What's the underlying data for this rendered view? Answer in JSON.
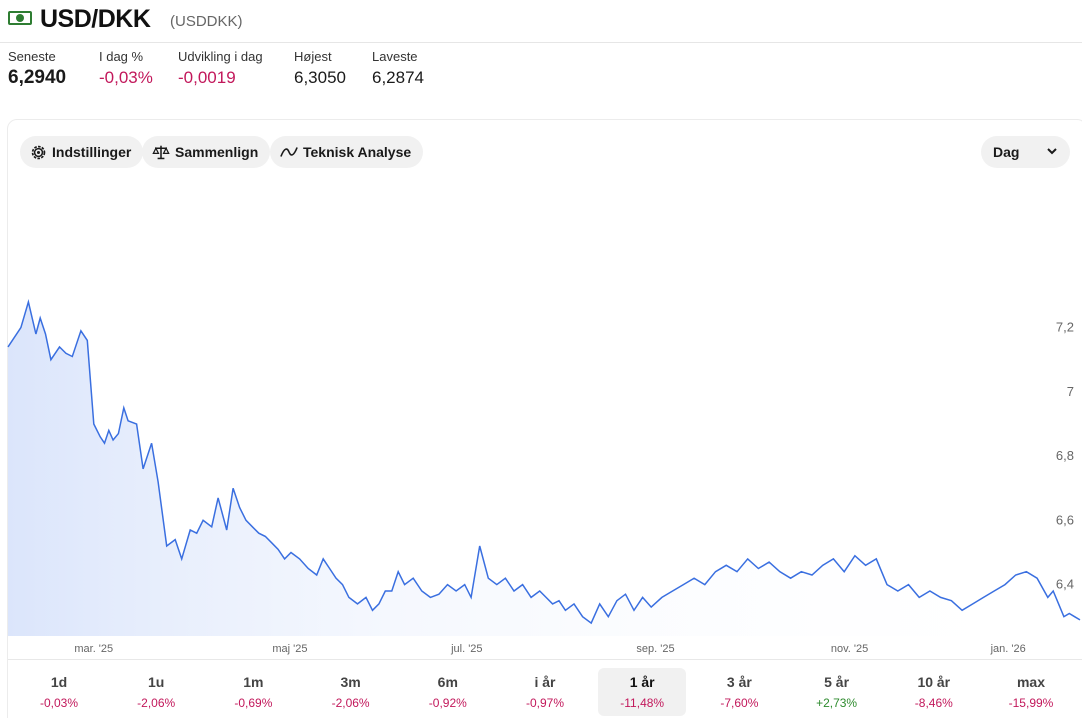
{
  "header": {
    "title": "USD/DKK",
    "ticker": "(USDDKK)"
  },
  "stats": [
    {
      "label": "Seneste",
      "value": "6,2940",
      "tone": "big"
    },
    {
      "label": "I dag %",
      "value": "-0,03%",
      "tone": "neg"
    },
    {
      "label": "Udvikling i dag",
      "value": "-0,0019",
      "tone": "neg"
    },
    {
      "label": "Højest",
      "value": "6,3050",
      "tone": "normal"
    },
    {
      "label": "Laveste",
      "value": "6,2874",
      "tone": "normal"
    }
  ],
  "toolbar": {
    "settings": "Indstillinger",
    "compare": "Sammenlign",
    "analysis": "Teknisk Analyse",
    "interval": "Dag"
  },
  "chart_data": {
    "type": "area",
    "title": "",
    "xlabel": "",
    "ylabel": "",
    "ylim": [
      6.24,
      7.51
    ],
    "y_ticks": [
      "7,2",
      "7",
      "6,8",
      "6,6",
      "6,4"
    ],
    "y_tick_values": [
      7.2,
      7.0,
      6.8,
      6.6,
      6.4
    ],
    "x_ticks": [
      "mar. '25",
      "maj '25",
      "jul. '25",
      "sep. '25",
      "nov. '25",
      "jan. '26"
    ],
    "x_tick_values": [
      0.08,
      0.263,
      0.428,
      0.604,
      0.785,
      0.933
    ],
    "line_color": "#3a6fe0",
    "fill_color": "#e3ebfc",
    "series": [
      {
        "x": [
          0.0,
          0.012,
          0.019,
          0.026,
          0.03,
          0.035,
          0.04,
          0.048,
          0.054,
          0.06,
          0.068,
          0.074,
          0.08,
          0.086,
          0.09,
          0.094,
          0.098,
          0.103,
          0.108,
          0.112,
          0.12,
          0.126,
          0.134,
          0.14,
          0.148,
          0.156,
          0.162,
          0.17,
          0.176,
          0.182,
          0.19,
          0.196,
          0.2,
          0.204,
          0.21,
          0.216,
          0.222,
          0.228,
          0.234,
          0.24,
          0.246,
          0.252,
          0.258,
          0.264,
          0.272,
          0.28,
          0.288,
          0.294,
          0.3,
          0.306,
          0.312,
          0.318,
          0.326,
          0.334,
          0.34,
          0.346,
          0.352,
          0.358,
          0.364,
          0.37,
          0.378,
          0.386,
          0.394,
          0.402,
          0.41,
          0.418,
          0.426,
          0.432,
          0.44,
          0.448,
          0.456,
          0.464,
          0.472,
          0.48,
          0.488,
          0.496,
          0.502,
          0.508,
          0.514,
          0.52,
          0.528,
          0.536,
          0.544,
          0.552,
          0.56,
          0.568,
          0.576,
          0.584,
          0.592,
          0.6,
          0.61,
          0.62,
          0.63,
          0.64,
          0.65,
          0.66,
          0.67,
          0.68,
          0.69,
          0.7,
          0.71,
          0.72,
          0.73,
          0.74,
          0.75,
          0.76,
          0.77,
          0.78,
          0.79,
          0.8,
          0.81,
          0.82,
          0.83,
          0.84,
          0.85,
          0.86,
          0.87,
          0.88,
          0.89,
          0.9,
          0.91,
          0.92,
          0.93,
          0.94,
          0.95,
          0.96,
          0.97,
          0.975,
          0.98,
          0.985,
          0.99,
          0.995,
          1.0
        ],
        "y": [
          7.14,
          7.2,
          7.28,
          7.18,
          7.23,
          7.18,
          7.1,
          7.14,
          7.12,
          7.11,
          7.19,
          7.16,
          6.9,
          6.86,
          6.84,
          6.88,
          6.85,
          6.87,
          6.95,
          6.91,
          6.9,
          6.76,
          6.84,
          6.72,
          6.52,
          6.54,
          6.48,
          6.57,
          6.56,
          6.6,
          6.58,
          6.67,
          6.62,
          6.57,
          6.7,
          6.64,
          6.6,
          6.58,
          6.56,
          6.55,
          6.53,
          6.51,
          6.48,
          6.5,
          6.48,
          6.45,
          6.43,
          6.48,
          6.45,
          6.42,
          6.4,
          6.36,
          6.34,
          6.36,
          6.32,
          6.34,
          6.38,
          6.38,
          6.44,
          6.4,
          6.42,
          6.38,
          6.36,
          6.37,
          6.4,
          6.38,
          6.4,
          6.36,
          6.52,
          6.42,
          6.4,
          6.42,
          6.38,
          6.4,
          6.36,
          6.38,
          6.36,
          6.34,
          6.35,
          6.32,
          6.34,
          6.3,
          6.28,
          6.34,
          6.3,
          6.35,
          6.37,
          6.32,
          6.36,
          6.33,
          6.36,
          6.38,
          6.4,
          6.42,
          6.4,
          6.44,
          6.46,
          6.44,
          6.48,
          6.45,
          6.47,
          6.44,
          6.42,
          6.44,
          6.43,
          6.46,
          6.48,
          6.44,
          6.49,
          6.46,
          6.48,
          6.4,
          6.38,
          6.4,
          6.36,
          6.38,
          6.36,
          6.35,
          6.32,
          6.34,
          6.36,
          6.38,
          6.4,
          6.43,
          6.44,
          6.42,
          6.36,
          6.38,
          6.34,
          6.3,
          6.31,
          6.3,
          6.29
        ]
      }
    ]
  },
  "periods": [
    {
      "label": "1d",
      "change": "-0,03%",
      "tone": "neg"
    },
    {
      "label": "1u",
      "change": "-2,06%",
      "tone": "neg"
    },
    {
      "label": "1m",
      "change": "-0,69%",
      "tone": "neg"
    },
    {
      "label": "3m",
      "change": "-2,06%",
      "tone": "neg"
    },
    {
      "label": "6m",
      "change": "-0,92%",
      "tone": "neg"
    },
    {
      "label": "i år",
      "change": "-0,97%",
      "tone": "neg"
    },
    {
      "label": "1 år",
      "change": "-11,48%",
      "tone": "neg",
      "active": true
    },
    {
      "label": "3 år",
      "change": "-7,60%",
      "tone": "neg"
    },
    {
      "label": "5 år",
      "change": "+2,73%",
      "tone": "pos"
    },
    {
      "label": "10 år",
      "change": "-8,46%",
      "tone": "neg"
    },
    {
      "label": "max",
      "change": "-15,99%",
      "tone": "neg"
    }
  ]
}
